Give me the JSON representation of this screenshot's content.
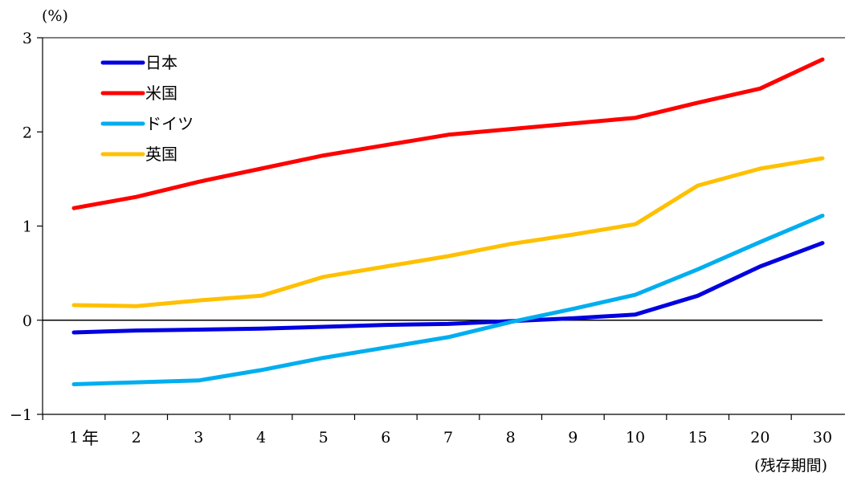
{
  "chart_data": {
    "type": "line",
    "title": "",
    "y_unit_label": "(%)",
    "x_unit_label": "(残存期間)",
    "categories": [
      "1",
      "2",
      "3",
      "4",
      "5",
      "6",
      "7",
      "8",
      "9",
      "10",
      "15",
      "20",
      "30"
    ],
    "first_tick_suffix": "年",
    "ylim": [
      -1,
      3
    ],
    "yticks": [
      "-1",
      "0",
      "1",
      "2",
      "3"
    ],
    "zero_line": true,
    "legend_position": "top-left",
    "series": [
      {
        "name": "日本",
        "color": "#0000e0",
        "values": [
          -0.13,
          -0.11,
          -0.1,
          -0.09,
          -0.07,
          -0.05,
          -0.04,
          -0.01,
          0.02,
          0.06,
          0.26,
          0.57,
          0.82
        ]
      },
      {
        "name": "米国",
        "color": "#ff0000",
        "values": [
          1.19,
          1.31,
          1.47,
          1.61,
          1.75,
          1.86,
          1.97,
          2.03,
          2.09,
          2.15,
          2.31,
          2.46,
          2.77
        ]
      },
      {
        "name": "ドイツ",
        "color": "#00aeef",
        "values": [
          -0.68,
          -0.66,
          -0.64,
          -0.53,
          -0.4,
          -0.29,
          -0.18,
          -0.02,
          0.12,
          0.27,
          0.54,
          0.83,
          1.11
        ]
      },
      {
        "name": "英国",
        "color": "#ffc000",
        "values": [
          0.16,
          0.15,
          0.21,
          0.26,
          0.46,
          0.57,
          0.68,
          0.81,
          0.91,
          1.02,
          1.43,
          1.61,
          1.72
        ]
      }
    ]
  }
}
